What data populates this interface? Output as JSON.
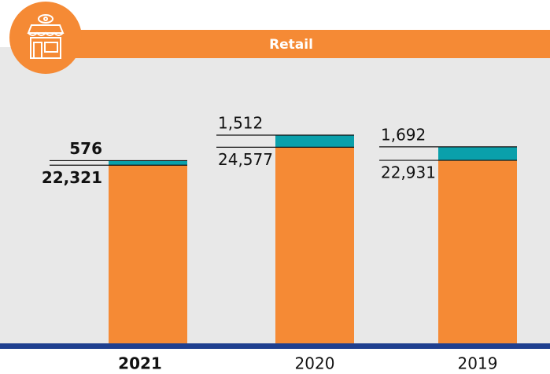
{
  "chart_data": {
    "type": "stacked-bar",
    "title": "Retail",
    "categories": [
      "2021",
      "2020",
      "2019"
    ],
    "series": [
      {
        "color": "#f58a35",
        "values": [
          22321,
          24577,
          22931
        ],
        "value_labels": [
          "22,321",
          "24,577",
          "22,931"
        ]
      },
      {
        "color": "#0aa0ab",
        "values": [
          576,
          1512,
          1692
        ],
        "value_labels": [
          "576",
          "1,512",
          "1,692"
        ]
      }
    ]
  }
}
